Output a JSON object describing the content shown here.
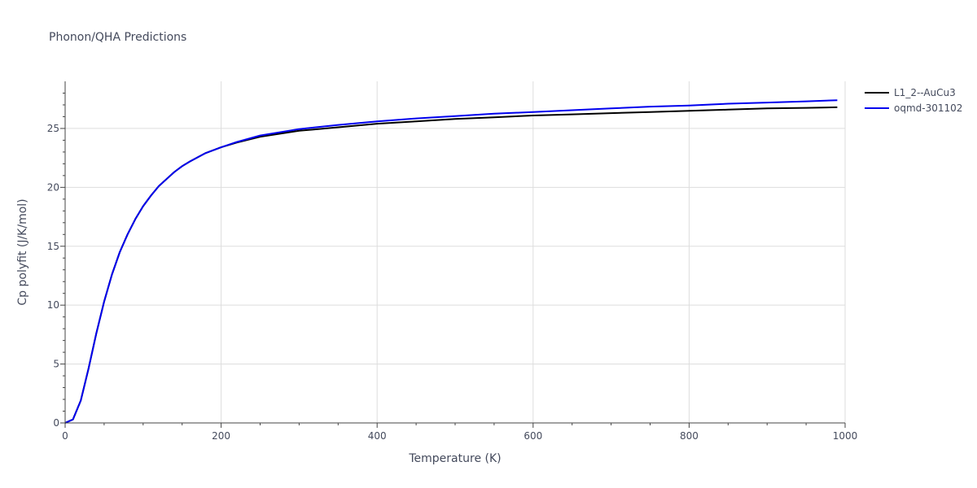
{
  "chart_data": {
    "type": "line",
    "title": "Phonon/QHA Predictions",
    "xlabel": "Temperature (K)",
    "ylabel": "Cp polyfit (J/K/mol)",
    "xlim": [
      0,
      1000
    ],
    "ylim": [
      0,
      29
    ],
    "xticks": [
      0,
      200,
      400,
      600,
      800,
      1000
    ],
    "yticks": [
      0,
      5,
      10,
      15,
      20,
      25
    ],
    "grid": true,
    "legend_position": "top-right",
    "series": [
      {
        "name": "L1_2--AuCu3",
        "color": "#000000",
        "x": [
          0,
          10,
          20,
          30,
          40,
          50,
          60,
          70,
          80,
          90,
          100,
          110,
          120,
          130,
          140,
          150,
          160,
          180,
          200,
          220,
          250,
          300,
          350,
          400,
          450,
          500,
          550,
          600,
          650,
          700,
          750,
          800,
          850,
          900,
          950,
          990
        ],
        "y": [
          0,
          0.3,
          1.9,
          4.6,
          7.6,
          10.3,
          12.6,
          14.5,
          16.0,
          17.3,
          18.4,
          19.3,
          20.1,
          20.7,
          21.3,
          21.8,
          22.2,
          22.9,
          23.4,
          23.8,
          24.3,
          24.8,
          25.1,
          25.4,
          25.6,
          25.8,
          25.95,
          26.1,
          26.2,
          26.3,
          26.4,
          26.5,
          26.6,
          26.7,
          26.75,
          26.8
        ]
      },
      {
        "name": "oqmd-301102",
        "color": "#0000ee",
        "x": [
          0,
          10,
          20,
          30,
          40,
          50,
          60,
          70,
          80,
          90,
          100,
          110,
          120,
          130,
          140,
          150,
          160,
          180,
          200,
          220,
          250,
          300,
          350,
          400,
          450,
          500,
          550,
          600,
          650,
          700,
          750,
          800,
          850,
          900,
          950,
          990
        ],
        "y": [
          0,
          0.3,
          1.9,
          4.6,
          7.6,
          10.3,
          12.6,
          14.5,
          16.0,
          17.3,
          18.4,
          19.3,
          20.1,
          20.7,
          21.3,
          21.8,
          22.2,
          22.9,
          23.4,
          23.85,
          24.4,
          24.95,
          25.3,
          25.6,
          25.85,
          26.05,
          26.25,
          26.4,
          26.55,
          26.7,
          26.85,
          26.95,
          27.1,
          27.2,
          27.3,
          27.4
        ]
      }
    ]
  }
}
